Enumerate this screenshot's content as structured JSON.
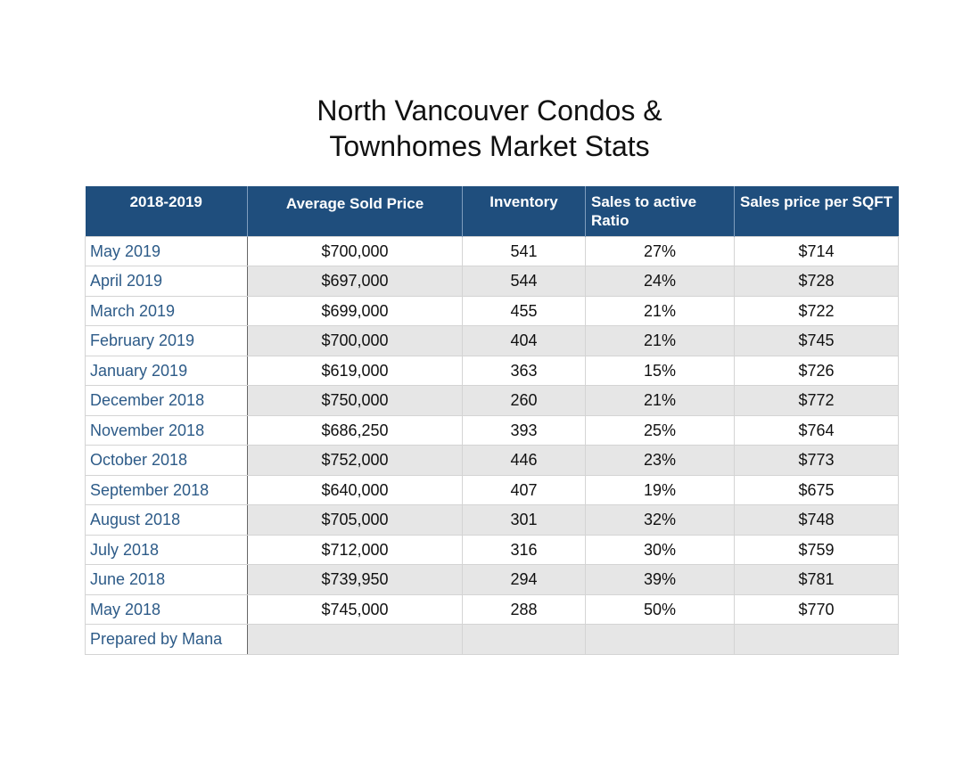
{
  "title": {
    "line1": "North Vancouver Condos &",
    "line2": "Townhomes Market Stats"
  },
  "colors": {
    "header_bg": "#1f4e7d",
    "header_text": "#ffffff",
    "label_text": "#2d5b88",
    "alt_row_bg": "#e6e6e6"
  },
  "chart_data": {
    "type": "table",
    "columns": [
      "2018-2019",
      "Average Sold Price",
      "Inventory",
      "Sales to active Ratio",
      "Sales price per SQFT"
    ],
    "rows": [
      [
        "May 2019",
        "$700,000",
        "541",
        "27%",
        "$714"
      ],
      [
        "April 2019",
        "$697,000",
        "544",
        "24%",
        "$728"
      ],
      [
        "March 2019",
        "$699,000",
        "455",
        "21%",
        "$722"
      ],
      [
        "February 2019",
        "$700,000",
        "404",
        "21%",
        "$745"
      ],
      [
        "January 2019",
        "$619,000",
        "363",
        "15%",
        "$726"
      ],
      [
        "December 2018",
        "$750,000",
        "260",
        "21%",
        "$772"
      ],
      [
        "November 2018",
        "$686,250",
        "393",
        "25%",
        "$764"
      ],
      [
        "October 2018",
        "$752,000",
        "446",
        "23%",
        "$773"
      ],
      [
        "September 2018",
        "$640,000",
        "407",
        "19%",
        "$675"
      ],
      [
        "August 2018",
        "$705,000",
        "301",
        "32%",
        "$748"
      ],
      [
        "July 2018",
        "$712,000",
        "316",
        "30%",
        "$759"
      ],
      [
        "June 2018",
        "$739,950",
        "294",
        "39%",
        "$781"
      ],
      [
        "May 2018",
        "$745,000",
        "288",
        "50%",
        "$770"
      ],
      [
        "Prepared by Mana",
        "",
        "",
        "",
        ""
      ]
    ]
  }
}
